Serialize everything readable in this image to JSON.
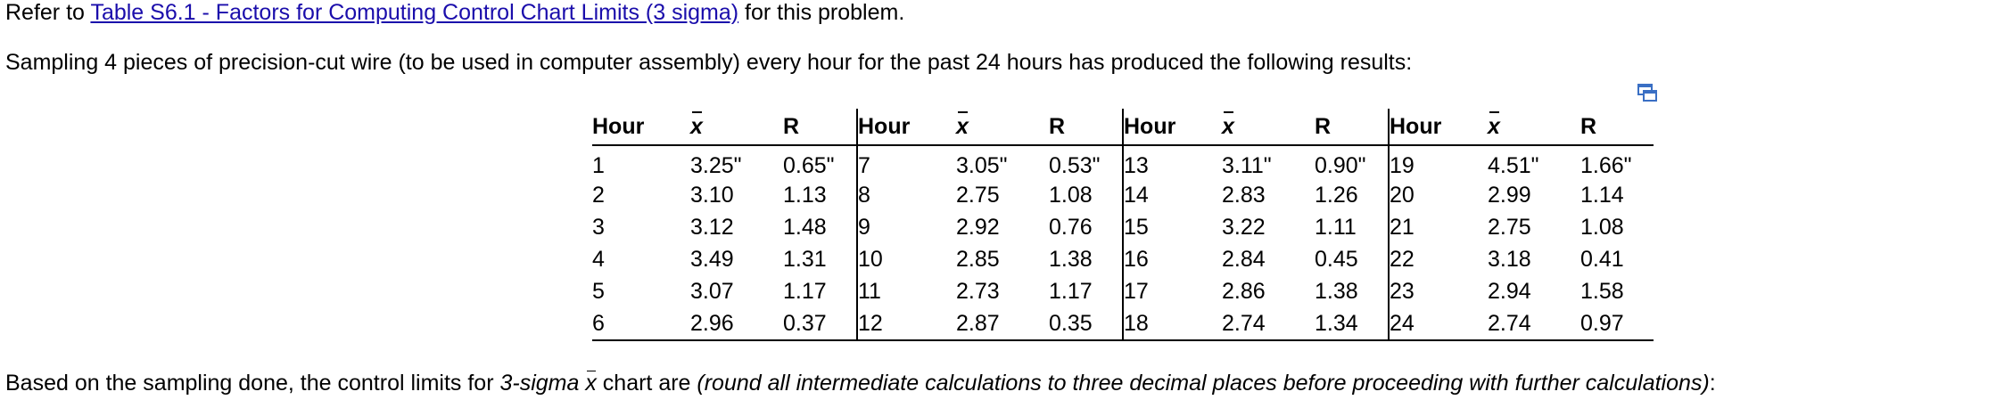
{
  "intro": {
    "prefix": "Refer to ",
    "link_text": "Table S6.1 - Factors for Computing Control Chart Limits (3 sigma)",
    "suffix": " for this problem."
  },
  "problem_text": "Sampling 4 pieces of precision-cut wire (to be used in computer assembly) every hour for the past 24 hours has produced the following results:",
  "copy_icon": "copy-table-icon",
  "table": {
    "headers": [
      "Hour",
      "x",
      "R",
      "Hour",
      "x",
      "R",
      "Hour",
      "x",
      "R",
      "Hour",
      "x",
      "R"
    ],
    "rows": [
      [
        "1",
        "3.25\"",
        "0.65\"",
        "7",
        "3.05\"",
        "0.53\"",
        "13",
        "3.11\"",
        "0.90\"",
        "19",
        "4.51\"",
        "1.66\""
      ],
      [
        "2",
        "3.10",
        "1.13",
        "8",
        "2.75",
        "1.08",
        "14",
        "2.83",
        "1.26",
        "20",
        "2.99",
        "1.14"
      ],
      [
        "3",
        "3.12",
        "1.48",
        "9",
        "2.92",
        "0.76",
        "15",
        "3.22",
        "1.11",
        "21",
        "2.75",
        "1.08"
      ],
      [
        "4",
        "3.49",
        "1.31",
        "10",
        "2.85",
        "1.38",
        "16",
        "2.84",
        "0.45",
        "22",
        "3.18",
        "0.41"
      ],
      [
        "5",
        "3.07",
        "1.17",
        "11",
        "2.73",
        "1.17",
        "17",
        "2.86",
        "1.38",
        "23",
        "2.94",
        "1.58"
      ],
      [
        "6",
        "2.96",
        "0.37",
        "12",
        "2.87",
        "0.35",
        "18",
        "2.74",
        "1.34",
        "24",
        "2.74",
        "0.97"
      ]
    ]
  },
  "question": {
    "part1": "Based on the sampling done, the control limits for ",
    "part2": "3-sigma ",
    "xbar": "x",
    "part3": " chart are ",
    "part4": "(round all intermediate calculations to three decimal places before proceeding with further calculations)",
    "part5": ":"
  }
}
